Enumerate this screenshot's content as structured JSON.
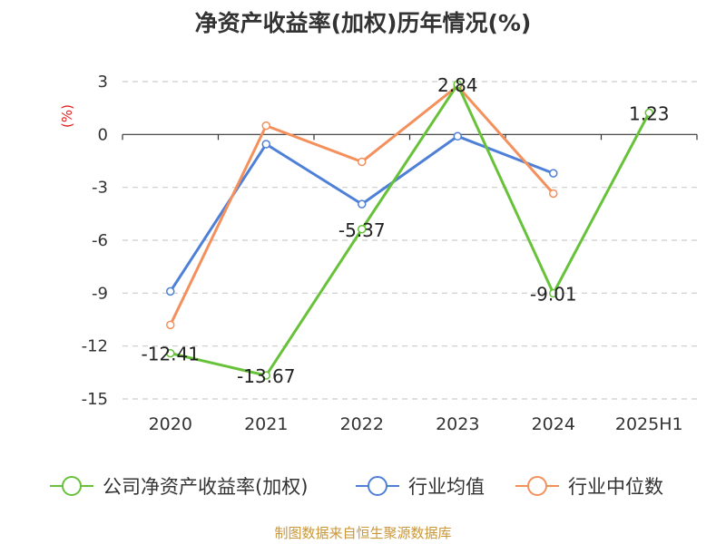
{
  "title": "净资产收益率(加权)历年情况(%)",
  "source": "制图数据来自恒生聚源数据库",
  "chart_data": {
    "type": "line",
    "title": "净资产收益率(加权)历年情况(%)",
    "ylabel": "(%)",
    "ylabel_color": "#e02020",
    "categories": [
      "2020",
      "2021",
      "2022",
      "2023",
      "2024",
      "2025H1"
    ],
    "ylim": [
      -15,
      3
    ],
    "yticks": [
      3,
      0,
      -3,
      -6,
      -9,
      -12,
      -15
    ],
    "grid": true,
    "legend_position": "bottom",
    "series": [
      {
        "name": "公司净资产收益率(加权)",
        "color": "#67c23a",
        "values": [
          -12.41,
          -13.67,
          -5.37,
          2.84,
          -9.01,
          1.23
        ],
        "labels": [
          "-12.41",
          "-13.67",
          "-5.37",
          "2.84",
          "-9.01",
          "1.23"
        ]
      },
      {
        "name": "行业均值",
        "color": "#4e80d8",
        "values": [
          -8.9,
          -0.55,
          -3.95,
          -0.1,
          -2.2,
          null
        ]
      },
      {
        "name": "行业中位数",
        "color": "#f4905c",
        "values": [
          -10.8,
          0.5,
          -1.55,
          2.75,
          -3.35,
          null
        ]
      }
    ]
  }
}
